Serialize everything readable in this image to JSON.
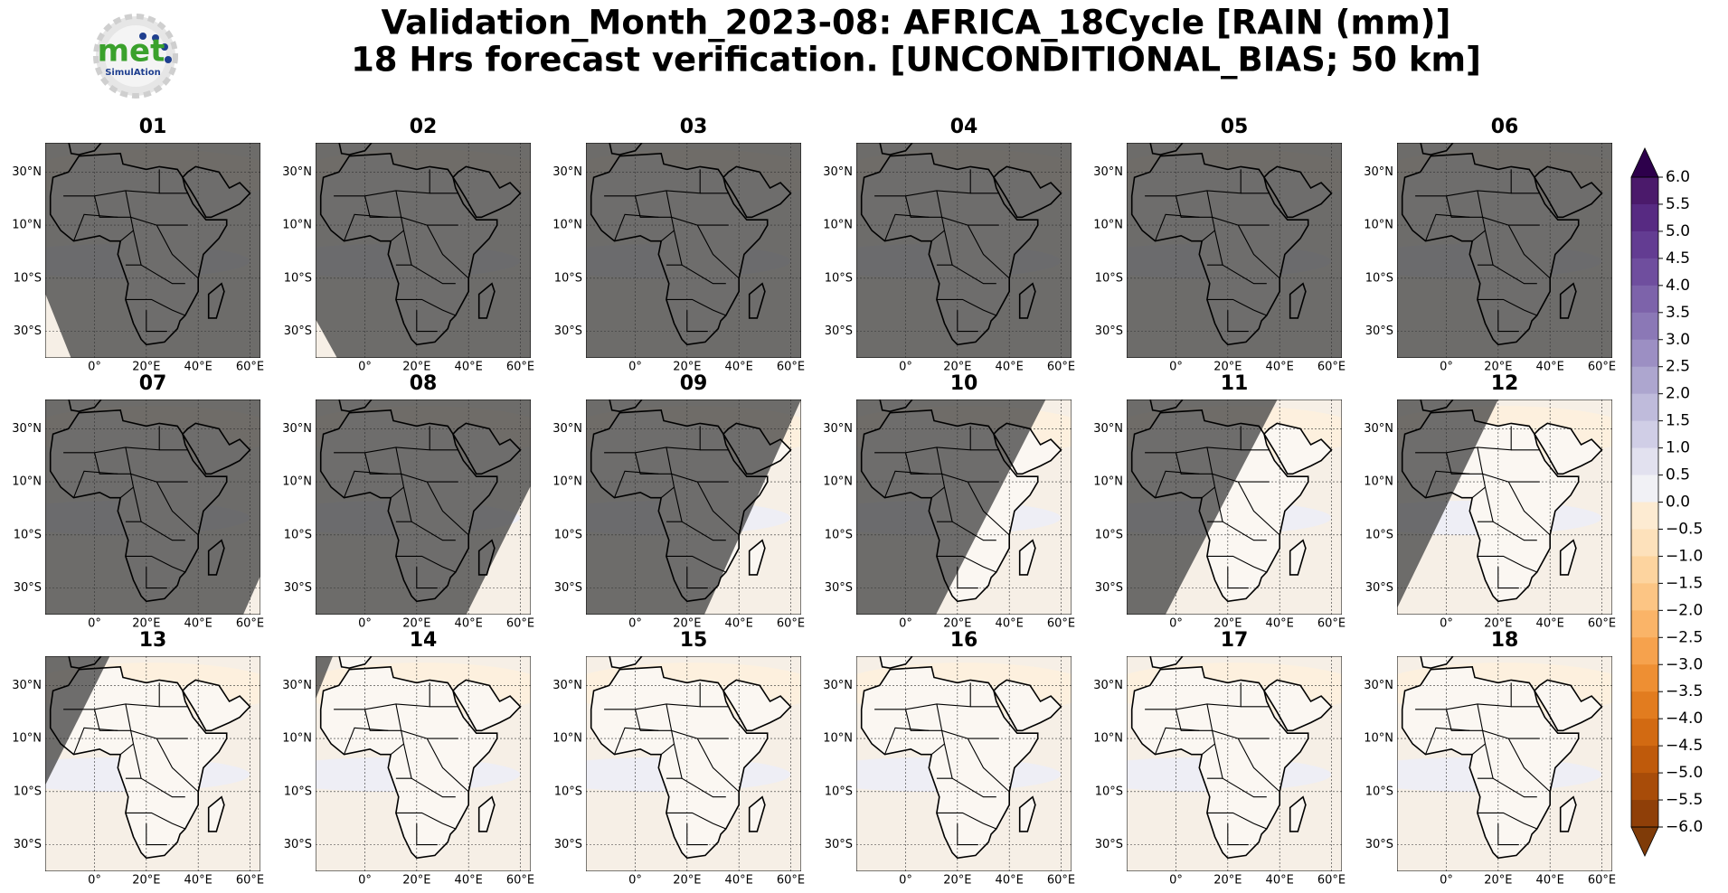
{
  "title": {
    "line1": "Validation_Month_2023-08: AFRICA_18Cycle [RAIN (mm)]",
    "line2": "18 Hrs forecast verification. [UNCONDITIONAL_BIAS; 50 km]"
  },
  "logo": {
    "brand": "met",
    "tagline": "SimulAtion"
  },
  "panels": [
    "01",
    "02",
    "03",
    "04",
    "05",
    "06",
    "07",
    "08",
    "09",
    "10",
    "11",
    "12",
    "13",
    "14",
    "15",
    "16",
    "17",
    "18"
  ],
  "map": {
    "lon_lim": [
      -19,
      64
    ],
    "lat_lim": [
      -40,
      41
    ],
    "lon_ticks": [
      {
        "value": 0,
        "label": "0°"
      },
      {
        "value": 20,
        "label": "20°E"
      },
      {
        "value": 40,
        "label": "40°E"
      },
      {
        "value": 60,
        "label": "60°E"
      }
    ],
    "lat_ticks": [
      {
        "value": 30,
        "label": "30°N"
      },
      {
        "value": 10,
        "label": "10°N"
      },
      {
        "value": -10,
        "label": "10°S"
      },
      {
        "value": -30,
        "label": "30°S"
      }
    ]
  },
  "colorbar": {
    "lim": [
      -6,
      6
    ],
    "ticks": [
      {
        "value": 6,
        "label": "6.0"
      },
      {
        "value": 5.5,
        "label": "5.5"
      },
      {
        "value": 5,
        "label": "5.0"
      },
      {
        "value": 4.5,
        "label": "4.5"
      },
      {
        "value": 4,
        "label": "4.0"
      },
      {
        "value": 3.5,
        "label": "3.5"
      },
      {
        "value": 3,
        "label": "3.0"
      },
      {
        "value": 2.5,
        "label": "2.5"
      },
      {
        "value": 2,
        "label": "2.0"
      },
      {
        "value": 1.5,
        "label": "1.5"
      },
      {
        "value": 1,
        "label": "1.0"
      },
      {
        "value": 0.5,
        "label": "0.5"
      },
      {
        "value": 0,
        "label": "0.0"
      },
      {
        "value": -0.5,
        "label": "−0.5"
      },
      {
        "value": -1,
        "label": "−1.0"
      },
      {
        "value": -1.5,
        "label": "−1.5"
      },
      {
        "value": -2,
        "label": "−2.0"
      },
      {
        "value": -2.5,
        "label": "−2.5"
      },
      {
        "value": -3,
        "label": "−3.0"
      },
      {
        "value": -3.5,
        "label": "−3.5"
      },
      {
        "value": -4,
        "label": "−4.0"
      },
      {
        "value": -4.5,
        "label": "−4.5"
      },
      {
        "value": -5,
        "label": "−5.0"
      },
      {
        "value": -5.5,
        "label": "−5.5"
      },
      {
        "value": -6,
        "label": "−6.0"
      }
    ],
    "colors": [
      "#4b1a6b",
      "#572a82",
      "#633c92",
      "#6f4e9e",
      "#7d63aa",
      "#8b78b6",
      "#9c8fc3",
      "#ada6cf",
      "#bfbbdb",
      "#d0cee6",
      "#e2e1ef",
      "#f1f1f5",
      "#fdebd2",
      "#fde1bb",
      "#fdd49f",
      "#fcc584",
      "#fab468",
      "#f6a24d",
      "#ee8f33",
      "#e27c1f",
      "#d26a12",
      "#bf5a0b",
      "#a84c09",
      "#8f3f08"
    ],
    "extend_colors": [
      "#2d004b",
      "#7f3b08"
    ]
  }
}
